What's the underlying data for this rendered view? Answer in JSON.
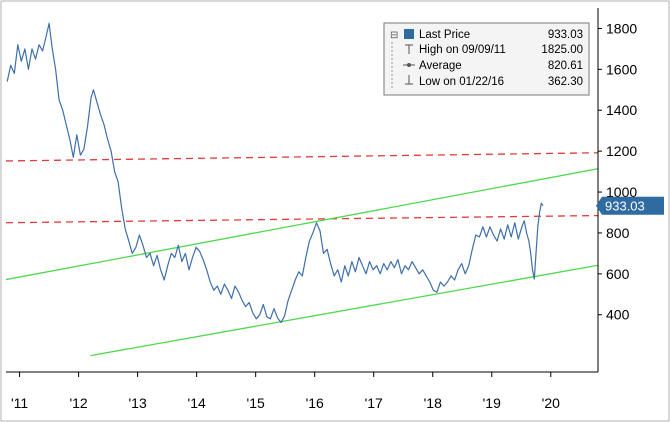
{
  "chart_data": {
    "type": "line",
    "title": "",
    "xlabel": "",
    "ylabel": "",
    "xlim": [
      2010.62,
      2020.65
    ],
    "ylim": [
      120,
      1900
    ],
    "x_ticks": [
      {
        "value": 2010.85,
        "label": "'11"
      },
      {
        "value": 2011.85,
        "label": "'12"
      },
      {
        "value": 2012.85,
        "label": "'13"
      },
      {
        "value": 2013.85,
        "label": "'14"
      },
      {
        "value": 2014.85,
        "label": "'15"
      },
      {
        "value": 2015.85,
        "label": "'16"
      },
      {
        "value": 2016.85,
        "label": "'17"
      },
      {
        "value": 2017.85,
        "label": "'18"
      },
      {
        "value": 2018.85,
        "label": "'19"
      },
      {
        "value": 2019.85,
        "label": "'20"
      }
    ],
    "y_ticks": [
      400,
      600,
      800,
      1000,
      1200,
      1400,
      1600,
      1800
    ],
    "grid": false,
    "legend": {
      "position": "top-right",
      "entries": [
        {
          "label": "Last Price",
          "value": "933.03"
        },
        {
          "label": "High on 09/09/11",
          "value": "1825.00"
        },
        {
          "label": "Average",
          "value": "820.61"
        },
        {
          "label": "Low on 01/22/16",
          "value": "362.30"
        }
      ]
    },
    "last_price_label": "933.03",
    "series": [
      {
        "name": "Last Price",
        "color": "#3f6fa8",
        "points": [
          [
            2010.64,
            1540
          ],
          [
            2010.7,
            1620
          ],
          [
            2010.76,
            1580
          ],
          [
            2010.82,
            1720
          ],
          [
            2010.88,
            1640
          ],
          [
            2010.94,
            1700
          ],
          [
            2011.0,
            1600
          ],
          [
            2011.06,
            1700
          ],
          [
            2011.12,
            1650
          ],
          [
            2011.18,
            1720
          ],
          [
            2011.24,
            1690
          ],
          [
            2011.3,
            1760
          ],
          [
            2011.35,
            1825
          ],
          [
            2011.4,
            1710
          ],
          [
            2011.46,
            1600
          ],
          [
            2011.52,
            1450
          ],
          [
            2011.58,
            1400
          ],
          [
            2011.64,
            1330
          ],
          [
            2011.7,
            1260
          ],
          [
            2011.76,
            1170
          ],
          [
            2011.82,
            1280
          ],
          [
            2011.88,
            1180
          ],
          [
            2011.94,
            1210
          ],
          [
            2012.0,
            1320
          ],
          [
            2012.06,
            1460
          ],
          [
            2012.1,
            1500
          ],
          [
            2012.16,
            1440
          ],
          [
            2012.22,
            1380
          ],
          [
            2012.28,
            1330
          ],
          [
            2012.34,
            1260
          ],
          [
            2012.4,
            1200
          ],
          [
            2012.46,
            1100
          ],
          [
            2012.52,
            1050
          ],
          [
            2012.58,
            920
          ],
          [
            2012.64,
            820
          ],
          [
            2012.7,
            760
          ],
          [
            2012.76,
            700
          ],
          [
            2012.82,
            730
          ],
          [
            2012.88,
            790
          ],
          [
            2012.94,
            740
          ],
          [
            2013.0,
            680
          ],
          [
            2013.06,
            700
          ],
          [
            2013.12,
            640
          ],
          [
            2013.18,
            690
          ],
          [
            2013.24,
            620
          ],
          [
            2013.3,
            570
          ],
          [
            2013.36,
            640
          ],
          [
            2013.42,
            700
          ],
          [
            2013.48,
            680
          ],
          [
            2013.54,
            740
          ],
          [
            2013.6,
            660
          ],
          [
            2013.66,
            700
          ],
          [
            2013.72,
            620
          ],
          [
            2013.78,
            680
          ],
          [
            2013.84,
            730
          ],
          [
            2013.9,
            710
          ],
          [
            2013.96,
            670
          ],
          [
            2014.02,
            620
          ],
          [
            2014.08,
            560
          ],
          [
            2014.14,
            520
          ],
          [
            2014.2,
            540
          ],
          [
            2014.26,
            500
          ],
          [
            2014.32,
            550
          ],
          [
            2014.38,
            520
          ],
          [
            2014.44,
            480
          ],
          [
            2014.5,
            540
          ],
          [
            2014.56,
            510
          ],
          [
            2014.62,
            470
          ],
          [
            2014.68,
            440
          ],
          [
            2014.74,
            460
          ],
          [
            2014.8,
            410
          ],
          [
            2014.86,
            380
          ],
          [
            2014.92,
            400
          ],
          [
            2014.98,
            450
          ],
          [
            2015.04,
            390
          ],
          [
            2015.1,
            380
          ],
          [
            2015.16,
            430
          ],
          [
            2015.22,
            385
          ],
          [
            2015.28,
            362
          ],
          [
            2015.34,
            395
          ],
          [
            2015.4,
            470
          ],
          [
            2015.46,
            520
          ],
          [
            2015.52,
            570
          ],
          [
            2015.58,
            610
          ],
          [
            2015.64,
            590
          ],
          [
            2015.7,
            680
          ],
          [
            2015.76,
            760
          ],
          [
            2015.82,
            800
          ],
          [
            2015.88,
            850
          ],
          [
            2015.94,
            810
          ],
          [
            2016.0,
            700
          ],
          [
            2016.06,
            720
          ],
          [
            2016.12,
            650
          ],
          [
            2016.18,
            590
          ],
          [
            2016.24,
            620
          ],
          [
            2016.3,
            560
          ],
          [
            2016.36,
            640
          ],
          [
            2016.42,
            590
          ],
          [
            2016.48,
            660
          ],
          [
            2016.54,
            610
          ],
          [
            2016.6,
            680
          ],
          [
            2016.66,
            640
          ],
          [
            2016.72,
            600
          ],
          [
            2016.78,
            660
          ],
          [
            2016.84,
            620
          ],
          [
            2016.9,
            640
          ],
          [
            2016.96,
            600
          ],
          [
            2017.02,
            650
          ],
          [
            2017.08,
            620
          ],
          [
            2017.14,
            660
          ],
          [
            2017.2,
            630
          ],
          [
            2017.26,
            670
          ],
          [
            2017.32,
            600
          ],
          [
            2017.38,
            640
          ],
          [
            2017.44,
            620
          ],
          [
            2017.5,
            660
          ],
          [
            2017.56,
            630
          ],
          [
            2017.62,
            600
          ],
          [
            2017.68,
            620
          ],
          [
            2017.74,
            590
          ],
          [
            2017.8,
            560
          ],
          [
            2017.86,
            520
          ],
          [
            2017.92,
            510
          ],
          [
            2017.98,
            560
          ],
          [
            2018.04,
            540
          ],
          [
            2018.1,
            560
          ],
          [
            2018.16,
            590
          ],
          [
            2018.22,
            570
          ],
          [
            2018.28,
            620
          ],
          [
            2018.34,
            650
          ],
          [
            2018.4,
            600
          ],
          [
            2018.46,
            640
          ],
          [
            2018.52,
            720
          ],
          [
            2018.58,
            790
          ],
          [
            2018.64,
            780
          ],
          [
            2018.7,
            830
          ],
          [
            2018.76,
            780
          ],
          [
            2018.82,
            830
          ],
          [
            2018.88,
            790
          ],
          [
            2018.94,
            760
          ],
          [
            2019.0,
            820
          ],
          [
            2019.06,
            770
          ],
          [
            2019.12,
            840
          ],
          [
            2019.18,
            780
          ],
          [
            2019.24,
            850
          ],
          [
            2019.3,
            770
          ],
          [
            2019.36,
            830
          ],
          [
            2019.4,
            860
          ],
          [
            2019.44,
            800
          ],
          [
            2019.48,
            760
          ],
          [
            2019.51,
            700
          ],
          [
            2019.54,
            620
          ],
          [
            2019.57,
            575
          ],
          [
            2019.6,
            700
          ],
          [
            2019.63,
            830
          ],
          [
            2019.66,
            900
          ],
          [
            2019.69,
            945
          ],
          [
            2019.72,
            933
          ]
        ]
      }
    ],
    "reference_lines": [
      {
        "style": "dashed",
        "color": "#e23b3b",
        "x": [
          2010.62,
          2020.65
        ],
        "y": [
          1152,
          1192
        ]
      },
      {
        "style": "dashed",
        "color": "#e23b3b",
        "x": [
          2010.62,
          2020.65
        ],
        "y": [
          850,
          885
        ]
      },
      {
        "style": "solid",
        "color": "#4cd94c",
        "x": [
          2010.62,
          2020.65
        ],
        "y": [
          572,
          1114
        ]
      },
      {
        "style": "solid",
        "color": "#4cd94c",
        "x": [
          2012.05,
          2020.65
        ],
        "y": [
          200,
          642
        ]
      }
    ],
    "colors": {
      "price_line": "#3f6fa8",
      "price_tag": "#2f6aa0",
      "support_resistance": "#e23b3b",
      "channel": "#4cd94c",
      "legend_square": "#2f6aa0"
    }
  }
}
